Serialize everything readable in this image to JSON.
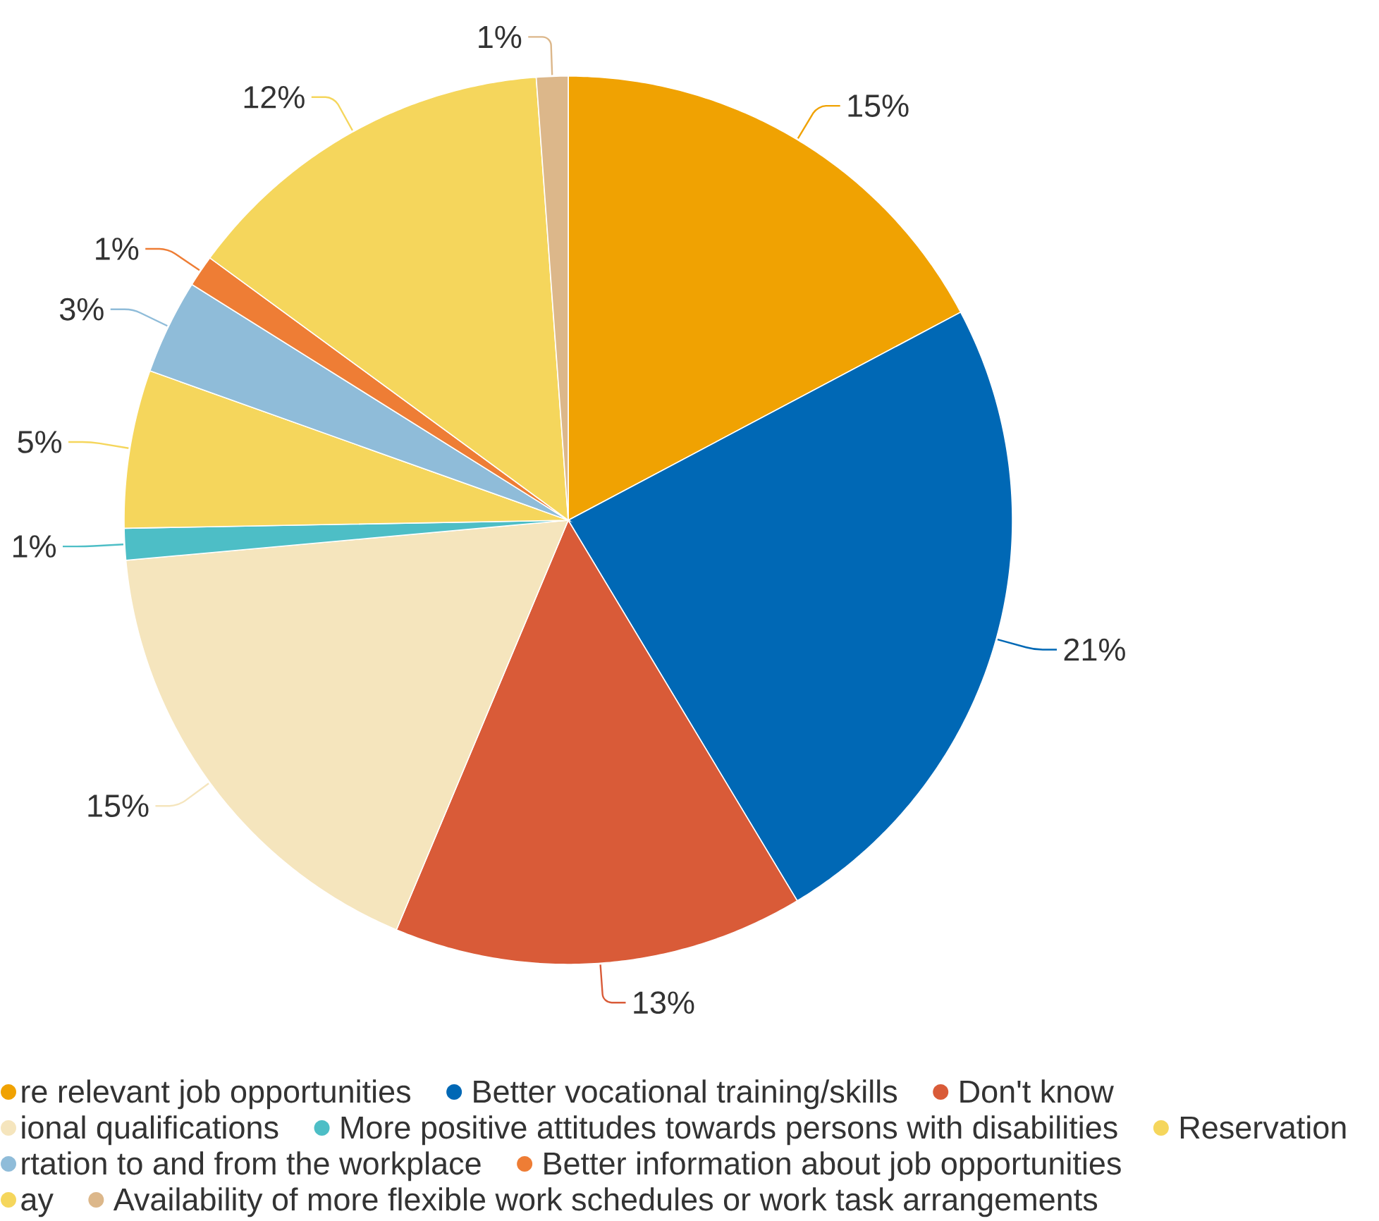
{
  "chart_data": {
    "type": "pie",
    "categories": [
      "re relevant job opportunities",
      "Better vocational training/skills",
      "Don't know",
      "ional qualifications",
      "More positive attitudes towards persons with disabilities",
      "Reservation",
      "rtation to and from the workplace",
      "Better information about job opportunities",
      "ay",
      "Availability of more flexible work schedules or work task arrangements"
    ],
    "values": [
      15,
      21,
      13,
      15,
      1,
      5,
      3,
      1,
      12,
      1
    ],
    "colors": [
      "#f0a202",
      "#0068b5",
      "#d95b38",
      "#f5e5bd",
      "#4dbec6",
      "#f5d65c",
      "#8fbcd9",
      "#ee7d35",
      "#f5d65c",
      "#dcb78a"
    ],
    "value_labels": [
      "15%",
      "21%",
      "13%",
      "15%",
      "1%",
      "5%",
      "3%",
      "1%",
      "12%",
      "1%"
    ],
    "legend": "bottom"
  }
}
